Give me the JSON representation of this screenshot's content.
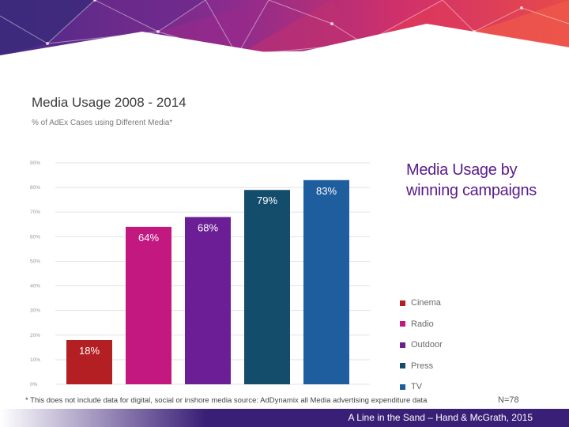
{
  "chart_data": {
    "type": "bar",
    "title": "Media Usage 2008 - 2014",
    "subtitle": "% of AdEx Cases using Different Media*",
    "categories": [
      "Cinema",
      "Radio",
      "Outdoor",
      "Press",
      "TV"
    ],
    "values": [
      18,
      64,
      68,
      79,
      83
    ],
    "data_labels": [
      "18%",
      "64%",
      "68%",
      "79%",
      "83%"
    ],
    "colors": [
      "#b41f24",
      "#c2187f",
      "#6b1e96",
      "#144d6b",
      "#1f5e9e"
    ],
    "ylim": [
      0,
      90
    ],
    "yticks": [
      0,
      10,
      20,
      30,
      40,
      50,
      60,
      70,
      80,
      90
    ],
    "ytick_labels": [
      "0%",
      "10%",
      "20%",
      "30%",
      "40%",
      "50%",
      "60%",
      "70%",
      "80%",
      "90%"
    ],
    "xlabel": "",
    "ylabel": "",
    "grid": true,
    "legend_position": "right"
  },
  "side_heading": "Media Usage by winning campaigns",
  "footnote": "* This does not include data for digital, social or inshore media source: AdDynamix all Media advertising expenditure data",
  "sample_size": "N=78",
  "credit": "A Line in the Sand – Hand & McGrath, 2015"
}
